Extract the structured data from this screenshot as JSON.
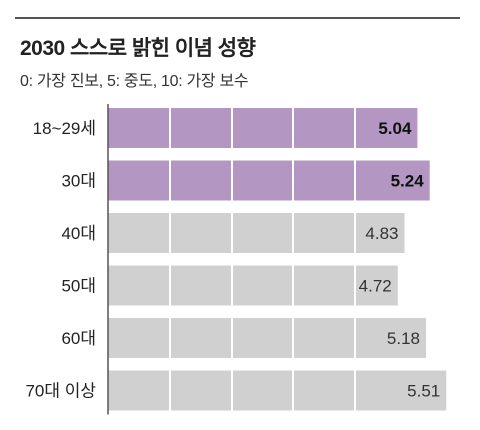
{
  "header": {
    "title": "2030 스스로 밝힌 이념 성향",
    "subtitle": "0: 가장 진보, 5: 중도, 10: 가장 보수"
  },
  "chart_data": {
    "type": "bar",
    "orientation": "horizontal",
    "title": "2030 스스로 밝힌 이념 성향",
    "subtitle": "0: 가장 진보, 5: 중도, 10: 가장 보수",
    "categories": [
      "18~29세",
      "30대",
      "40대",
      "50대",
      "60대",
      "70대 이상"
    ],
    "values": [
      5.04,
      5.24,
      4.83,
      4.72,
      5.18,
      5.51
    ],
    "value_labels": [
      "5.04",
      "5.24",
      "4.83",
      "4.72",
      "5.18",
      "5.51"
    ],
    "highlighted": [
      true,
      true,
      false,
      false,
      false,
      false
    ],
    "colors": {
      "highlight": "#b397c2",
      "normal": "#d0d0d0",
      "gridline": "#ffffff",
      "axis": "#555555"
    },
    "xlim": [
      0,
      5.75
    ],
    "grid": true,
    "legend": "none"
  }
}
